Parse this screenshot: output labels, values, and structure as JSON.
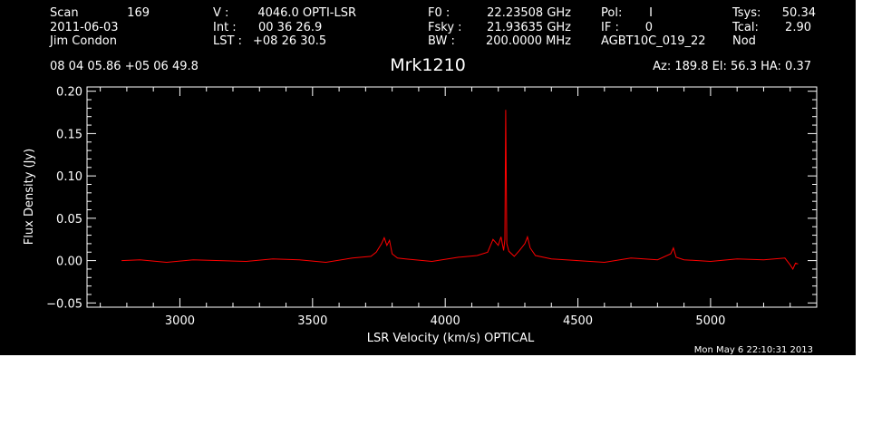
{
  "header": {
    "left_labels": [
      "Scan",
      "2011-06-03",
      "Jim Condon"
    ],
    "scan_number": "169",
    "col2_labels": [
      "V    :",
      "Int   :",
      "LST :"
    ],
    "col2_values": [
      "4046.0 OPTI-LSR",
      "00 36 26.9",
      "+08 26 30.5"
    ],
    "col3_labels": [
      "F0    :",
      "Fsky :",
      "BW    :"
    ],
    "col3_values": [
      "22.23508 GHz",
      "21.93635 GHz",
      "200.0000 MHz"
    ],
    "col4_labels": [
      "Pol:",
      "IF :",
      "AGBT10C_019_22"
    ],
    "col4_values": [
      "I",
      "0",
      ""
    ],
    "col5_labels": [
      "Tsys:",
      "Tcal:",
      "Nod"
    ],
    "col5_values": [
      "50.34",
      "2.90",
      ""
    ],
    "coords": "08 04 05.86  +05 06 49.8",
    "source": "Mrk1210",
    "az_el_ha": "Az: 189.8   El:  56.3   HA:  0.37",
    "timestamp": "Mon May  6 22:10:31 2013"
  },
  "chart_data": {
    "type": "line",
    "xlabel": "LSR Velocity (km/s) OPTICAL",
    "ylabel": "Flux Density (Jy)",
    "xlim": [
      2650,
      5400
    ],
    "ylim": [
      -0.055,
      0.205
    ],
    "xticks": [
      3000,
      3500,
      4000,
      4500,
      5000
    ],
    "xtick_labels": [
      "3000",
      "3500",
      "4000",
      "4500",
      "5000"
    ],
    "yticks": [
      -0.05,
      0.0,
      0.05,
      0.1,
      0.15,
      0.2
    ],
    "ytick_labels": [
      "−0.05",
      "0.00",
      "0.05",
      "0.10",
      "0.15",
      "0.20"
    ],
    "series": [
      {
        "color": "#ff0000",
        "x": [
          2780,
          2850,
          2950,
          3050,
          3150,
          3250,
          3350,
          3450,
          3550,
          3650,
          3720,
          3740,
          3760,
          3770,
          3780,
          3790,
          3800,
          3820,
          3850,
          3950,
          4050,
          4120,
          4160,
          4180,
          4200,
          4210,
          4220,
          4225,
          4228,
          4232,
          4240,
          4260,
          4280,
          4300,
          4310,
          4320,
          4340,
          4400,
          4500,
          4600,
          4700,
          4800,
          4850,
          4860,
          4870,
          4900,
          5000,
          5100,
          5200,
          5280,
          5300,
          5310,
          5320,
          5330
        ],
        "y": [
          0.0,
          0.001,
          -0.002,
          0.001,
          0.0,
          -0.001,
          0.002,
          0.001,
          -0.002,
          0.003,
          0.005,
          0.01,
          0.02,
          0.027,
          0.018,
          0.024,
          0.008,
          0.003,
          0.002,
          -0.001,
          0.004,
          0.006,
          0.01,
          0.025,
          0.018,
          0.028,
          0.012,
          0.025,
          0.178,
          0.02,
          0.011,
          0.005,
          0.012,
          0.02,
          0.028,
          0.015,
          0.006,
          0.002,
          0.0,
          -0.002,
          0.003,
          0.001,
          0.008,
          0.015,
          0.004,
          0.001,
          -0.001,
          0.002,
          0.001,
          0.003,
          -0.005,
          -0.01,
          -0.003,
          -0.004
        ]
      }
    ],
    "grid": false,
    "legend": "none"
  },
  "colors": {
    "background": "#000000",
    "foreground": "#ffffff",
    "trace": "#ff0000"
  }
}
